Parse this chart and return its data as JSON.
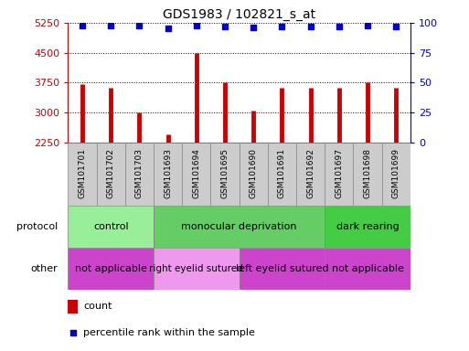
{
  "title": "GDS1983 / 102821_s_at",
  "samples": [
    "GSM101701",
    "GSM101702",
    "GSM101703",
    "GSM101693",
    "GSM101694",
    "GSM101695",
    "GSM101690",
    "GSM101691",
    "GSM101692",
    "GSM101697",
    "GSM101698",
    "GSM101699"
  ],
  "counts": [
    3700,
    3620,
    3000,
    2450,
    4500,
    3750,
    3040,
    3620,
    3620,
    3620,
    3750,
    3620
  ],
  "percentiles": [
    98,
    98,
    98,
    95,
    98,
    97,
    96,
    97,
    97,
    97,
    98,
    97
  ],
  "bar_color": "#cc0000",
  "dot_color": "#0000cc",
  "ylim_left": [
    2250,
    5250
  ],
  "ylim_right": [
    0,
    100
  ],
  "yticks_left": [
    2250,
    3000,
    3750,
    4500,
    5250
  ],
  "yticks_right": [
    0,
    25,
    50,
    75,
    100
  ],
  "protocol_groups": [
    {
      "label": "control",
      "start": 0,
      "end": 3,
      "color": "#99ee99"
    },
    {
      "label": "monocular deprivation",
      "start": 3,
      "end": 9,
      "color": "#66cc66"
    },
    {
      "label": "dark rearing",
      "start": 9,
      "end": 12,
      "color": "#44cc44"
    }
  ],
  "other_groups": [
    {
      "label": "not applicable",
      "start": 0,
      "end": 3,
      "color": "#cc44cc"
    },
    {
      "label": "right eyelid sutured",
      "start": 3,
      "end": 6,
      "color": "#ee99ee"
    },
    {
      "label": "left eyelid sutured",
      "start": 6,
      "end": 9,
      "color": "#cc44cc"
    },
    {
      "label": "not applicable",
      "start": 9,
      "end": 12,
      "color": "#cc44cc"
    }
  ],
  "legend_count_color": "#cc0000",
  "legend_dot_color": "#0000cc",
  "left_axis_color": "#cc0000",
  "right_axis_color": "#0000cc",
  "tick_label_bg": "#cccccc",
  "tick_label_border": "#888888"
}
